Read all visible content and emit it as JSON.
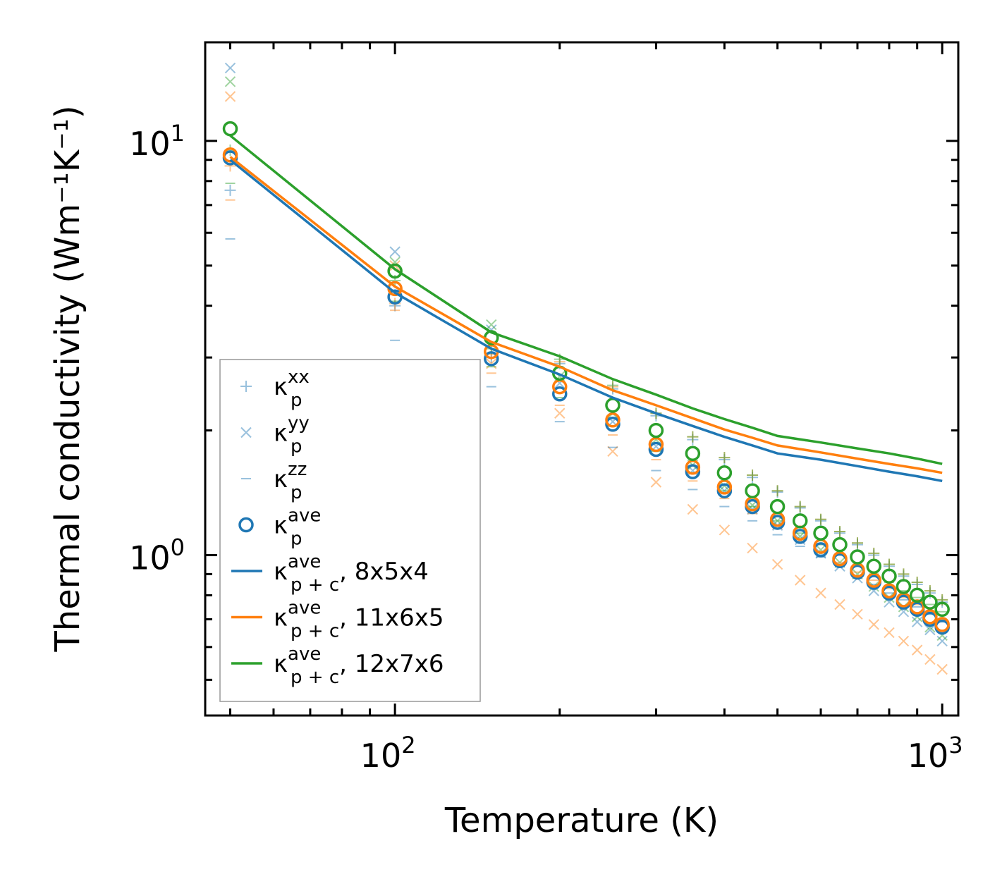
{
  "chart_data": {
    "type": "scatter",
    "title": "",
    "xlabel": "Temperature (K)",
    "ylabel": "Thermal conductivity (Wm⁻¹K⁻¹)",
    "xscale": "log",
    "yscale": "log",
    "xlim": [
      45,
      1070
    ],
    "ylim": [
      0.41,
      17.3
    ],
    "x_tick_labels": [
      {
        "value": 100,
        "base": "10",
        "exp": "2"
      },
      {
        "value": 1000,
        "base": "10",
        "exp": "3"
      }
    ],
    "y_tick_labels": [
      {
        "value": 1,
        "base": "10",
        "exp": "0"
      },
      {
        "value": 10,
        "base": "10",
        "exp": "1"
      }
    ],
    "legend_position": "lower-left",
    "x": [
      50,
      100,
      150,
      200,
      250,
      300,
      350,
      400,
      450,
      500,
      550,
      600,
      650,
      700,
      750,
      800,
      850,
      900,
      950,
      1000
    ],
    "marker_series": [
      {
        "name": "kxx_8x5x4",
        "marker": "plus",
        "color": "#1f77b4",
        "alpha": 0.45,
        "values": [
          7.6,
          4.0,
          3.0,
          2.9,
          2.52,
          2.17,
          1.9,
          1.7,
          1.54,
          1.42,
          1.3,
          1.21,
          1.13,
          1.06,
          1.0,
          0.94,
          0.89,
          0.85,
          0.81,
          0.77
        ]
      },
      {
        "name": "kxx_11x6x5",
        "marker": "plus",
        "color": "#ff7f0e",
        "alpha": 0.45,
        "values": [
          8.7,
          4.05,
          3.05,
          2.93,
          2.55,
          2.2,
          1.93,
          1.72,
          1.56,
          1.43,
          1.31,
          1.22,
          1.14,
          1.07,
          1.01,
          0.95,
          0.9,
          0.86,
          0.82,
          0.78
        ]
      },
      {
        "name": "kxx_12x7x6",
        "marker": "plus",
        "color": "#2ca02c",
        "alpha": 0.45,
        "values": [
          9.5,
          4.6,
          3.15,
          2.97,
          2.57,
          2.2,
          1.93,
          1.72,
          1.56,
          1.43,
          1.31,
          1.22,
          1.14,
          1.07,
          1.01,
          0.95,
          0.9,
          0.86,
          0.82,
          0.78
        ]
      },
      {
        "name": "kyy_8x5x4",
        "marker": "x",
        "color": "#1f77b4",
        "alpha": 0.45,
        "values": [
          15.0,
          5.4,
          3.5,
          2.6,
          2.1,
          1.83,
          1.6,
          1.43,
          1.29,
          1.18,
          1.09,
          1.01,
          0.94,
          0.88,
          0.82,
          0.77,
          0.73,
          0.69,
          0.66,
          0.62
        ]
      },
      {
        "name": "kyy_11x6x5",
        "marker": "x",
        "color": "#ff7f0e",
        "alpha": 0.45,
        "values": [
          12.8,
          5.0,
          2.9,
          2.2,
          1.78,
          1.5,
          1.29,
          1.15,
          1.04,
          0.95,
          0.87,
          0.81,
          0.76,
          0.72,
          0.68,
          0.65,
          0.62,
          0.59,
          0.56,
          0.53
        ]
      },
      {
        "name": "kyy_12x7x6",
        "marker": "x",
        "color": "#2ca02c",
        "alpha": 0.45,
        "values": [
          13.9,
          5.1,
          3.6,
          2.7,
          2.2,
          1.9,
          1.65,
          1.47,
          1.32,
          1.21,
          1.11,
          1.03,
          0.96,
          0.9,
          0.84,
          0.79,
          0.75,
          0.71,
          0.67,
          0.64
        ]
      },
      {
        "name": "kzz_8x5x4",
        "marker": "minus",
        "color": "#1f77b4",
        "alpha": 0.45,
        "values": [
          5.8,
          3.3,
          2.55,
          2.1,
          1.82,
          1.6,
          1.44,
          1.31,
          1.21,
          1.12,
          1.05,
          0.99,
          0.94,
          0.89,
          0.85,
          0.81,
          0.78,
          0.75,
          0.72,
          0.69
        ]
      },
      {
        "name": "kzz_11x6x5",
        "marker": "minus",
        "color": "#ff7f0e",
        "alpha": 0.45,
        "values": [
          7.2,
          3.9,
          2.75,
          2.3,
          1.95,
          1.7,
          1.51,
          1.37,
          1.26,
          1.16,
          1.08,
          1.02,
          0.96,
          0.91,
          0.87,
          0.83,
          0.79,
          0.76,
          0.73,
          0.7
        ]
      },
      {
        "name": "kzz_12x7x6",
        "marker": "minus",
        "color": "#2ca02c",
        "alpha": 0.45,
        "values": [
          7.9,
          4.1,
          2.85,
          2.4,
          2.05,
          1.78,
          1.58,
          1.43,
          1.31,
          1.21,
          1.13,
          1.06,
          1.0,
          0.95,
          0.9,
          0.86,
          0.82,
          0.79,
          0.76,
          0.73
        ]
      },
      {
        "name": "kave_8x5x4",
        "marker": "circle",
        "color": "#1f77b4",
        "alpha": 1,
        "values": [
          9.1,
          4.2,
          2.98,
          2.45,
          2.07,
          1.8,
          1.59,
          1.43,
          1.31,
          1.2,
          1.11,
          1.03,
          0.97,
          0.91,
          0.86,
          0.81,
          0.77,
          0.74,
          0.7,
          0.67
        ]
      },
      {
        "name": "kave_11x6x5",
        "marker": "circle",
        "color": "#ff7f0e",
        "alpha": 1,
        "values": [
          9.25,
          4.4,
          3.1,
          2.55,
          2.12,
          1.85,
          1.63,
          1.46,
          1.33,
          1.22,
          1.13,
          1.05,
          0.98,
          0.92,
          0.87,
          0.82,
          0.78,
          0.75,
          0.71,
          0.68
        ]
      },
      {
        "name": "kave_12x7x6",
        "marker": "circle",
        "color": "#2ca02c",
        "alpha": 1,
        "values": [
          10.7,
          4.85,
          3.35,
          2.75,
          2.3,
          2.0,
          1.76,
          1.58,
          1.43,
          1.31,
          1.21,
          1.13,
          1.06,
          0.99,
          0.94,
          0.89,
          0.84,
          0.8,
          0.77,
          0.74
        ]
      }
    ],
    "line_series": [
      {
        "name": "kpc_ave_8x5x4",
        "color": "#1f77b4",
        "values": [
          9.0,
          4.3,
          3.15,
          2.73,
          2.4,
          2.2,
          2.05,
          1.93,
          1.84,
          1.76,
          1.7,
          1.64,
          1.59,
          1.55,
          1.51
        ]
      },
      {
        "name": "kpc_ave_11x6x5",
        "color": "#ff7f0e",
        "values": [
          9.15,
          4.45,
          3.27,
          2.85,
          2.5,
          2.3,
          2.14,
          2.01,
          1.92,
          1.84,
          1.77,
          1.71,
          1.66,
          1.62,
          1.58
        ]
      },
      {
        "name": "kpc_ave_12x7x6",
        "color": "#2ca02c",
        "values": [
          10.3,
          4.9,
          3.45,
          3.02,
          2.66,
          2.44,
          2.26,
          2.13,
          2.03,
          1.94,
          1.87,
          1.81,
          1.76,
          1.71,
          1.66
        ]
      }
    ],
    "line_x": [
      50,
      100,
      150,
      200,
      250,
      300,
      350,
      400,
      450,
      500,
      600,
      700,
      800,
      900,
      1000
    ],
    "legend": [
      {
        "kind": "plus",
        "color": "#1f77b4",
        "alpha": 0.45,
        "main": "κ",
        "sup": "xx",
        "sub": "p",
        "suffix": ""
      },
      {
        "kind": "x",
        "color": "#1f77b4",
        "alpha": 0.45,
        "main": "κ",
        "sup": "yy",
        "sub": "p",
        "suffix": ""
      },
      {
        "kind": "minus",
        "color": "#1f77b4",
        "alpha": 0.45,
        "main": "κ",
        "sup": "zz",
        "sub": "p",
        "suffix": ""
      },
      {
        "kind": "circle",
        "color": "#1f77b4",
        "alpha": 1,
        "main": "κ",
        "sup": "ave",
        "sub": "p",
        "suffix": ""
      },
      {
        "kind": "line",
        "color": "#1f77b4",
        "alpha": 1,
        "main": "κ",
        "sup": "ave",
        "sub": "p + c",
        "suffix": ", 8x5x4"
      },
      {
        "kind": "line",
        "color": "#ff7f0e",
        "alpha": 1,
        "main": "κ",
        "sup": "ave",
        "sub": "p + c",
        "suffix": ", 11x6x5"
      },
      {
        "kind": "line",
        "color": "#2ca02c",
        "alpha": 1,
        "main": "κ",
        "sup": "ave",
        "sub": "p + c",
        "suffix": ", 12x7x6"
      }
    ]
  }
}
